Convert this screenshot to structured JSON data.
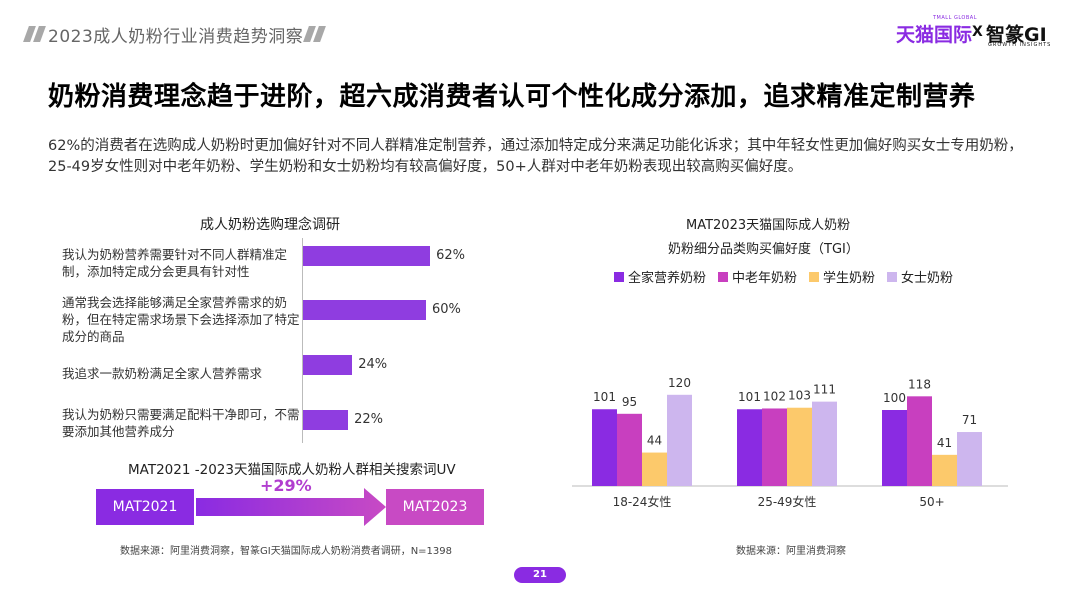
{
  "header": {
    "title": "2023成人奶粉行业消费趋势洞察",
    "brand_tmall": "天猫国际",
    "brand_tmall_sub": "TMALL GLOBAL",
    "brand_x": "X",
    "brand_zm": "智篆GI",
    "brand_zm_sub": "GROWTH INSIGHTS"
  },
  "main_title": "奶粉消费理念趋于进阶，超六成消费者认可个性化成分添加，追求精准定制营养",
  "intro": "62%的消费者在选购成人奶粉时更加偏好针对不同人群精准定制营养，通过添加特定成分来满足功能化诉求；其中年轻女性更加偏好购买女士专用奶粉，25-49岁女性则对中老年奶粉、学生奶粉和女士奶粉均有较高偏好度，50+人群对中老年奶粉表现出较高购买偏好度。",
  "left_chart": {
    "title": "成人奶粉选购理念调研",
    "items": [
      {
        "label": "我认为奶粉营养需要针对不同人群精准定制，添加特定成分会更具有针对性",
        "value": 62,
        "value_label": "62%"
      },
      {
        "label": "通常我会选择能够满足全家营养需求的奶粉，但在特定需求场景下会选择添加了特定成分的商品",
        "value": 60,
        "value_label": "60%"
      },
      {
        "label": "我追求一款奶粉满足全家人营养需求",
        "value": 24,
        "value_label": "24%"
      },
      {
        "label": "我认为奶粉只需要满足配料干净即可，不需要添加其他营养成分",
        "value": 22,
        "value_label": "22%"
      }
    ]
  },
  "uv": {
    "title": "MAT2021 -2023天猫国际成人奶粉人群相关搜索词UV",
    "from_label": "MAT2021",
    "to_label": "MAT2023",
    "growth": "+29%"
  },
  "left_source": "数据来源：阿里消费洞察，智篆GI天猫国际成人奶粉消费者调研，N=1398",
  "right_source": "数据来源：阿里消费洞察",
  "chart_data": [
    {
      "type": "bar",
      "orientation": "horizontal",
      "title": "成人奶粉选购理念调研",
      "categories": [
        "我认为奶粉营养需要针对不同人群精准定制，添加特定成分会更具有针对性",
        "通常我会选择能够满足全家营养需求的奶粉，但在特定需求场景下会选择添加了特定成分的商品",
        "我追求一款奶粉满足全家人营养需求",
        "我认为奶粉只需要满足配料干净即可，不需要添加其他营养成分"
      ],
      "values": [
        62,
        60,
        24,
        22
      ],
      "unit": "%",
      "xlim": [
        0,
        100
      ]
    },
    {
      "type": "bar",
      "title": "MAT2023天猫国际成人奶粉",
      "subtitle": "奶粉细分品类购买偏好度（TGI）",
      "categories": [
        "18-24女性",
        "25-49女性",
        "50+"
      ],
      "series": [
        {
          "name": "全家营养奶粉",
          "values": [
            101,
            101,
            100
          ],
          "color": "#8a2be2"
        },
        {
          "name": "中老年奶粉",
          "values": [
            95,
            102,
            118
          ],
          "color": "#c83fbf"
        },
        {
          "name": "学生奶粉",
          "values": [
            44,
            103,
            41
          ],
          "color": "#fcc96b"
        },
        {
          "name": "女士奶粉",
          "values": [
            120,
            111,
            71
          ],
          "color": "#cdb6ee"
        }
      ],
      "ylim": [
        0,
        130
      ],
      "legend": "top",
      "grid": false
    }
  ],
  "page_number": "21"
}
